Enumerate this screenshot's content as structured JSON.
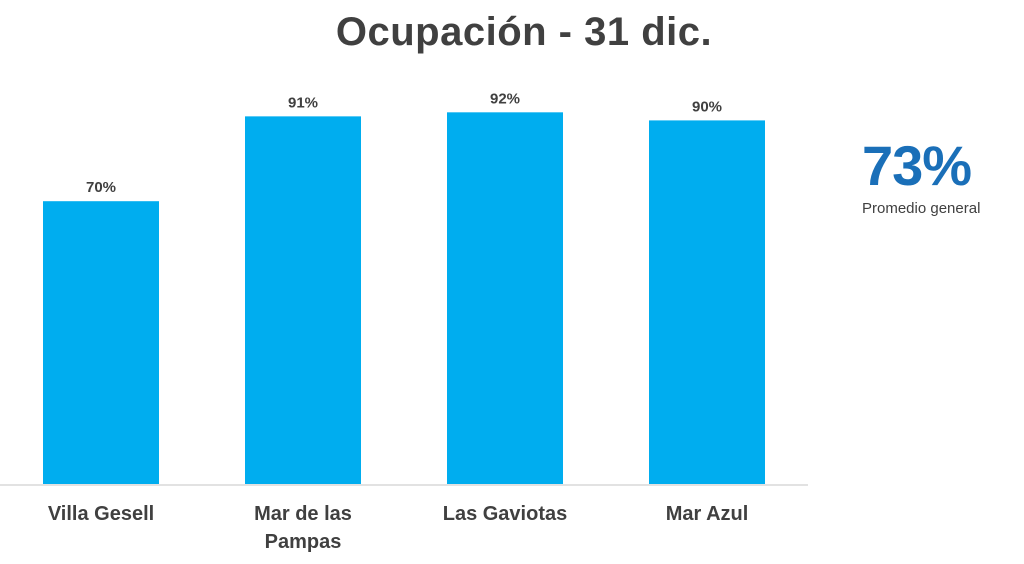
{
  "chart_data": {
    "type": "bar",
    "title": "Ocupación - 31 dic.",
    "categories": [
      [
        "Villa Gesell"
      ],
      [
        "Mar de las",
        "Pampas"
      ],
      [
        "Las Gaviotas"
      ],
      [
        "Mar Azul"
      ]
    ],
    "values": [
      70,
      91,
      92,
      90
    ],
    "value_labels": [
      "70%",
      "91%",
      "92%",
      "90%"
    ],
    "ylim": [
      0,
      100
    ],
    "grid": false,
    "bar_color": "#00adef",
    "xlabel": "",
    "ylabel": ""
  },
  "kpi": {
    "value": "73%",
    "label": "Promedio general",
    "color": "#1a6fb8"
  }
}
